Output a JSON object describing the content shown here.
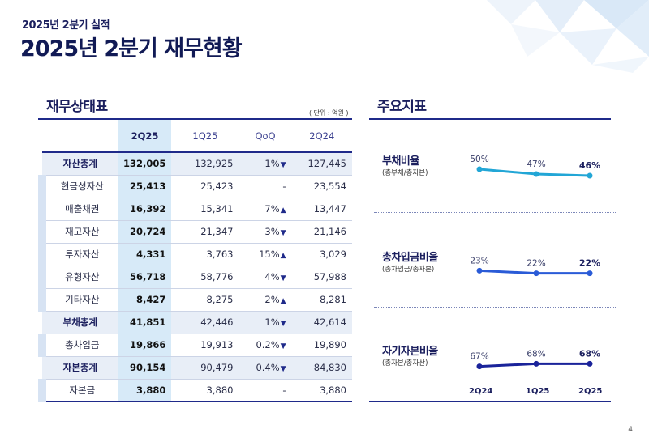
{
  "header": {
    "subtitle": "2025년 2분기 실적",
    "title": "2025년 2분기 재무현황",
    "page_number": "4"
  },
  "balance_sheet": {
    "title": "재무상태표",
    "unit": "( 단위 : 억원 )",
    "columns": [
      "2Q25",
      "1Q25",
      "QoQ",
      "2Q24"
    ],
    "rows": [
      {
        "label": "자산총계",
        "total": true,
        "q225": "132,005",
        "q125": "132,925",
        "qoq": "1%",
        "dir": "down",
        "q224": "127,445"
      },
      {
        "label": "현금성자산",
        "total": false,
        "q225": "25,413",
        "q125": "25,423",
        "qoq": "-",
        "dir": "",
        "q224": "23,554"
      },
      {
        "label": "매출채권",
        "total": false,
        "q225": "16,392",
        "q125": "15,341",
        "qoq": "7%",
        "dir": "up",
        "q224": "13,447"
      },
      {
        "label": "재고자산",
        "total": false,
        "q225": "20,724",
        "q125": "21,347",
        "qoq": "3%",
        "dir": "down",
        "q224": "21,146"
      },
      {
        "label": "투자자산",
        "total": false,
        "q225": "4,331",
        "q125": "3,763",
        "qoq": "15%",
        "dir": "up",
        "q224": "3,029"
      },
      {
        "label": "유형자산",
        "total": false,
        "q225": "56,718",
        "q125": "58,776",
        "qoq": "4%",
        "dir": "down",
        "q224": "57,988"
      },
      {
        "label": "기타자산",
        "total": false,
        "q225": "8,427",
        "q125": "8,275",
        "qoq": "2%",
        "dir": "up",
        "q224": "8,281"
      },
      {
        "label": "부채총계",
        "total": true,
        "q225": "41,851",
        "q125": "42,446",
        "qoq": "1%",
        "dir": "down",
        "q224": "42,614"
      },
      {
        "label": "총차입금",
        "total": false,
        "q225": "19,866",
        "q125": "19,913",
        "qoq": "0.2%",
        "dir": "down",
        "q224": "19,890"
      },
      {
        "label": "자본총계",
        "total": true,
        "q225": "90,154",
        "q125": "90,479",
        "qoq": "0.4%",
        "dir": "down",
        "q224": "84,830"
      },
      {
        "label": "자본금",
        "total": false,
        "q225": "3,880",
        "q125": "3,880",
        "qoq": "-",
        "dir": "",
        "q224": "3,880"
      }
    ]
  },
  "key_indicators": {
    "title": "주요지표",
    "x_labels": [
      "2Q24",
      "1Q25",
      "2Q25"
    ],
    "metrics": [
      {
        "name": "부채비율",
        "sub": "(총부채/총자본)",
        "values": [
          50,
          47,
          46
        ],
        "labels": [
          "50%",
          "47%",
          "46%"
        ],
        "color": "#22a6d6"
      },
      {
        "name": "총차입금비율",
        "sub": "(총차입금/총자본)",
        "values": [
          23,
          22,
          22
        ],
        "labels": [
          "23%",
          "22%",
          "22%"
        ],
        "color": "#2a5bd7"
      },
      {
        "name": "자기자본비율",
        "sub": "(총자본/총자산)",
        "values": [
          67,
          68,
          68
        ],
        "labels": [
          "67%",
          "68%",
          "68%"
        ],
        "color": "#1a239a"
      }
    ]
  },
  "colors": {
    "navy": "#1b1f5e",
    "rule": "#1f2a8a",
    "highlight": "#d7eaf8"
  }
}
